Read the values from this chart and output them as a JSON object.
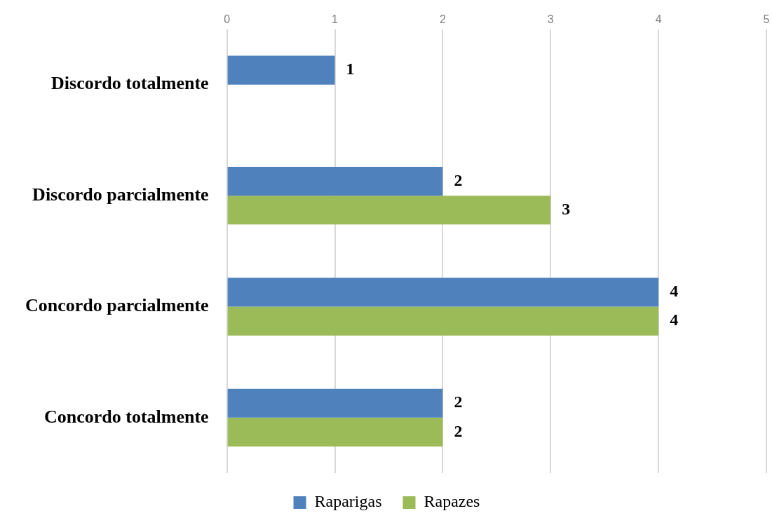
{
  "chart_data": {
    "type": "bar",
    "orientation": "horizontal",
    "categories": [
      "Discordo totalmente",
      "Discordo parcialmente",
      "Concordo parcialmente",
      "Concordo totalmente"
    ],
    "series": [
      {
        "name": "Raparigas",
        "color": "#4f81bd",
        "values": [
          1,
          2,
          4,
          2
        ]
      },
      {
        "name": "Rapazes",
        "color": "#9bbb59",
        "values": [
          null,
          3,
          4,
          2
        ]
      }
    ],
    "xlim": [
      0,
      5
    ],
    "xticks": [
      0,
      1,
      2,
      3,
      4,
      5
    ],
    "grid": "x",
    "legend": "bottom",
    "data_labels": true
  }
}
